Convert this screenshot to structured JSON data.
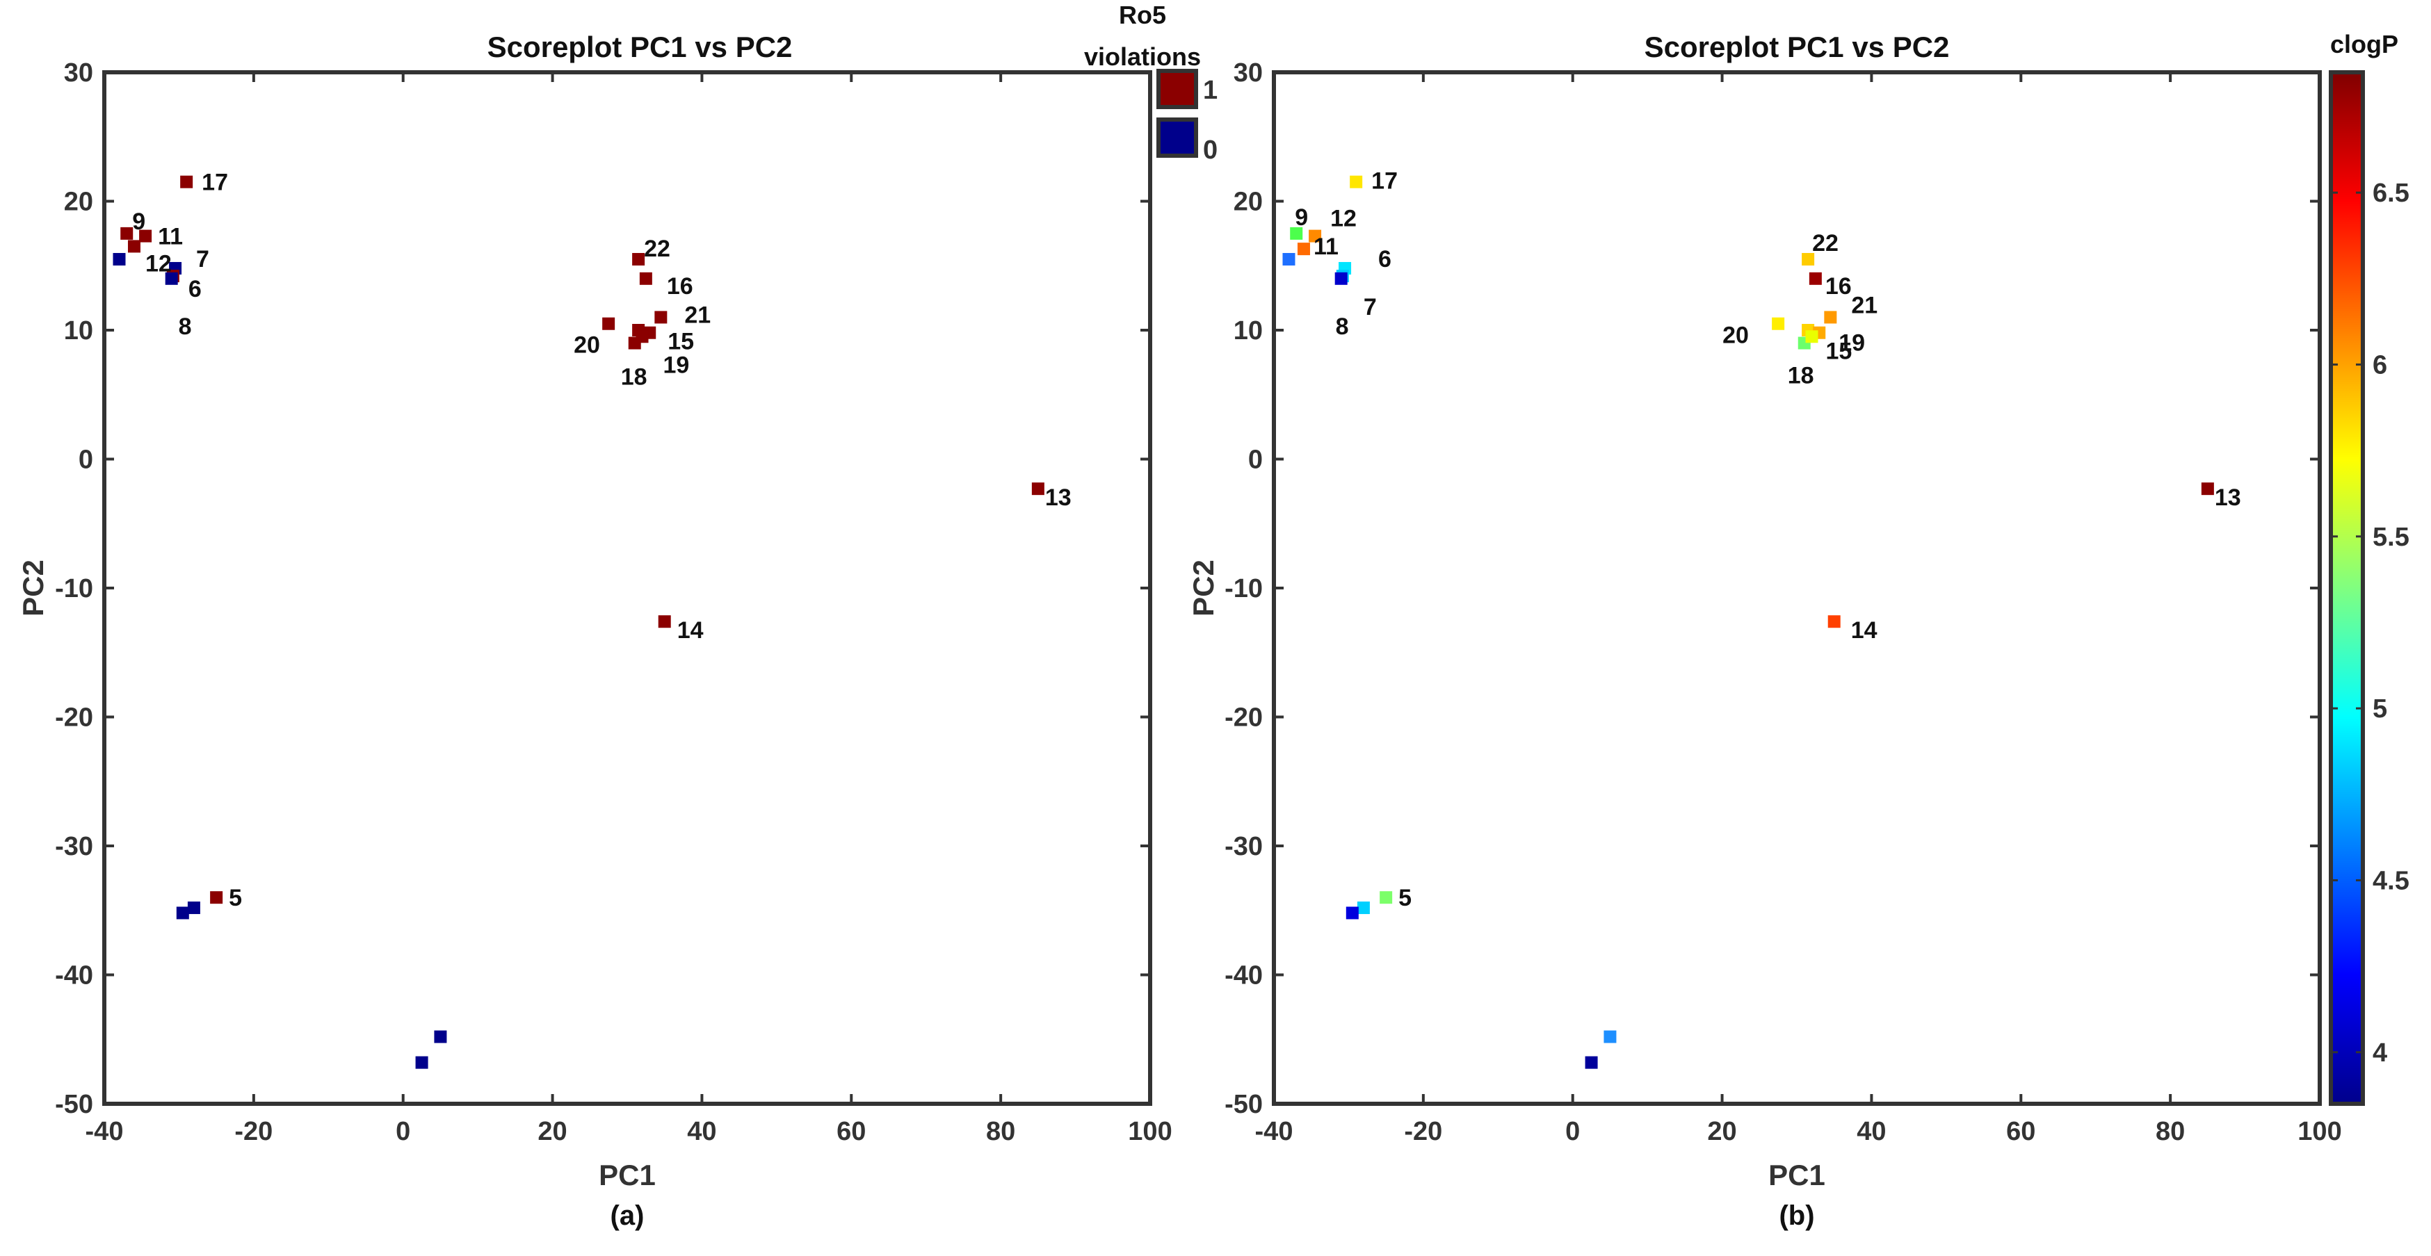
{
  "chart_data": [
    {
      "type": "scatter",
      "title": "Scoreplot PC1 vs PC2",
      "xlabel": "PC1",
      "ylabel": "PC2",
      "sublabel": "(a)",
      "xlim": [
        -40,
        100
      ],
      "ylim": [
        -50,
        30
      ],
      "xticks": [
        "-40",
        "-20",
        "0",
        "20",
        "40",
        "60",
        "80",
        "100"
      ],
      "yticks": [
        "30",
        "20",
        "10",
        "0",
        "-10",
        "-20",
        "-30",
        "-40",
        "-50"
      ],
      "grid": false,
      "legend": {
        "title_lines": [
          "Ro5",
          "violations"
        ],
        "placement": "right",
        "entries": [
          {
            "label": "1",
            "color": "#8b0000"
          },
          {
            "label": "0",
            "color": "#00008b"
          }
        ]
      },
      "points": [
        {
          "x": -38,
          "y": 15.5,
          "label": "",
          "color": "#00008b"
        },
        {
          "x": -37,
          "y": 17.5,
          "label": "9",
          "color": "#8b0000"
        },
        {
          "x": -36,
          "y": 16.5,
          "label": "12",
          "color": "#8b0000"
        },
        {
          "x": -34.5,
          "y": 17.3,
          "label": "11",
          "color": "#8b0000"
        },
        {
          "x": -30.5,
          "y": 14.8,
          "label": "7",
          "color": "#00008b"
        },
        {
          "x": -30.8,
          "y": 14.2,
          "label": "6",
          "color": "#8b0000"
        },
        {
          "x": -31,
          "y": 14,
          "label": "8",
          "color": "#00008b"
        },
        {
          "x": -29,
          "y": 21.5,
          "label": "17",
          "color": "#8b0000"
        },
        {
          "x": 31.5,
          "y": 15.5,
          "label": "22",
          "color": "#8b0000"
        },
        {
          "x": 32.5,
          "y": 14,
          "label": "16",
          "color": "#8b0000"
        },
        {
          "x": 34.5,
          "y": 11,
          "label": "21",
          "color": "#8b0000"
        },
        {
          "x": 27.5,
          "y": 10.5,
          "label": "20",
          "color": "#8b0000"
        },
        {
          "x": 31.5,
          "y": 10,
          "label": "",
          "color": "#8b0000"
        },
        {
          "x": 33,
          "y": 9.8,
          "label": "15",
          "color": "#8b0000"
        },
        {
          "x": 31,
          "y": 9,
          "label": "18",
          "color": "#8b0000"
        },
        {
          "x": 32,
          "y": 9.5,
          "label": "19",
          "color": "#8b0000"
        },
        {
          "x": 85,
          "y": -2.3,
          "label": "13",
          "color": "#8b0000"
        },
        {
          "x": 35,
          "y": -12.6,
          "label": "14",
          "color": "#8b0000"
        },
        {
          "x": -25,
          "y": -34,
          "label": "5",
          "color": "#8b0000"
        },
        {
          "x": -28,
          "y": -34.8,
          "label": "",
          "color": "#00008b"
        },
        {
          "x": -29.5,
          "y": -35.2,
          "label": "",
          "color": "#00008b"
        },
        {
          "x": 5,
          "y": -44.8,
          "label": "",
          "color": "#00008b"
        },
        {
          "x": 2.5,
          "y": -46.8,
          "label": "",
          "color": "#00008b"
        }
      ]
    },
    {
      "type": "scatter",
      "title": "Scoreplot PC1 vs PC2",
      "xlabel": "PC1",
      "ylabel": "PC2",
      "sublabel": "(b)",
      "xlim": [
        -40,
        100
      ],
      "ylim": [
        -50,
        30
      ],
      "xticks": [
        "-40",
        "-20",
        "0",
        "20",
        "40",
        "60",
        "80",
        "100"
      ],
      "yticks": [
        "30",
        "20",
        "10",
        "0",
        "-10",
        "-20",
        "-30",
        "-40",
        "-50"
      ],
      "grid": false,
      "colorbar": {
        "title": "clogP",
        "placement": "right",
        "range": [
          3.85,
          6.85
        ],
        "ticks": [
          "4",
          "4.5",
          "5",
          "5.5",
          "6",
          "6.5"
        ],
        "tick_values": [
          4,
          4.5,
          5,
          5.5,
          6,
          6.5
        ],
        "stops": [
          "#00008b",
          "#0000ff",
          "#0080ff",
          "#00ffff",
          "#80ff80",
          "#ffff00",
          "#ff8000",
          "#ff0000",
          "#800000"
        ]
      },
      "points": [
        {
          "x": -38,
          "y": 15.5,
          "label": "",
          "clogP": 4.5,
          "color": "#1e6fff"
        },
        {
          "x": -37,
          "y": 17.5,
          "label": "9",
          "clogP": 5.4,
          "color": "#4cff4c"
        },
        {
          "x": -34.5,
          "y": 17.3,
          "label": "12",
          "clogP": 6.1,
          "color": "#ff8a00"
        },
        {
          "x": -36,
          "y": 16.3,
          "label": "11",
          "clogP": 6.2,
          "color": "#ff6a00"
        },
        {
          "x": -30.5,
          "y": 14.8,
          "label": "6",
          "clogP": 4.9,
          "color": "#00e5ff"
        },
        {
          "x": -30.8,
          "y": 14.2,
          "label": "7",
          "clogP": 4.8,
          "color": "#00c8ff"
        },
        {
          "x": -31,
          "y": 14,
          "label": "8",
          "clogP": 4.0,
          "color": "#0000cc"
        },
        {
          "x": -29,
          "y": 21.5,
          "label": "17",
          "clogP": 5.7,
          "color": "#ffe600"
        },
        {
          "x": 31.5,
          "y": 15.5,
          "label": "22",
          "clogP": 5.8,
          "color": "#ffcc00"
        },
        {
          "x": 32.5,
          "y": 14,
          "label": "16",
          "clogP": 6.8,
          "color": "#9b0000"
        },
        {
          "x": 34.5,
          "y": 11,
          "label": "21",
          "clogP": 6.0,
          "color": "#ff9a00"
        },
        {
          "x": 27.5,
          "y": 10.5,
          "label": "20",
          "clogP": 5.7,
          "color": "#ffee00"
        },
        {
          "x": 31.5,
          "y": 10,
          "label": "",
          "clogP": 5.8,
          "color": "#ffd400"
        },
        {
          "x": 33,
          "y": 9.8,
          "label": "19",
          "clogP": 5.9,
          "color": "#ffaa00"
        },
        {
          "x": 31,
          "y": 9,
          "label": "18",
          "clogP": 5.4,
          "color": "#6cff6c"
        },
        {
          "x": 32,
          "y": 9.5,
          "label": "15",
          "clogP": 5.6,
          "color": "#eaff00"
        },
        {
          "x": 85,
          "y": -2.3,
          "label": "13",
          "clogP": 6.8,
          "color": "#8b0000"
        },
        {
          "x": 35,
          "y": -12.6,
          "label": "14",
          "clogP": 6.3,
          "color": "#ff4000"
        },
        {
          "x": -25,
          "y": -34,
          "label": "5",
          "clogP": 5.4,
          "color": "#7cff6a"
        },
        {
          "x": -28,
          "y": -34.8,
          "label": "",
          "clogP": 4.9,
          "color": "#00d0ff"
        },
        {
          "x": -29.5,
          "y": -35.2,
          "label": "",
          "clogP": 4.0,
          "color": "#0000dd"
        },
        {
          "x": 5,
          "y": -44.8,
          "label": "",
          "clogP": 4.6,
          "color": "#1e8fff"
        },
        {
          "x": 2.5,
          "y": -46.8,
          "label": "",
          "clogP": 3.9,
          "color": "#00009b"
        }
      ]
    }
  ]
}
